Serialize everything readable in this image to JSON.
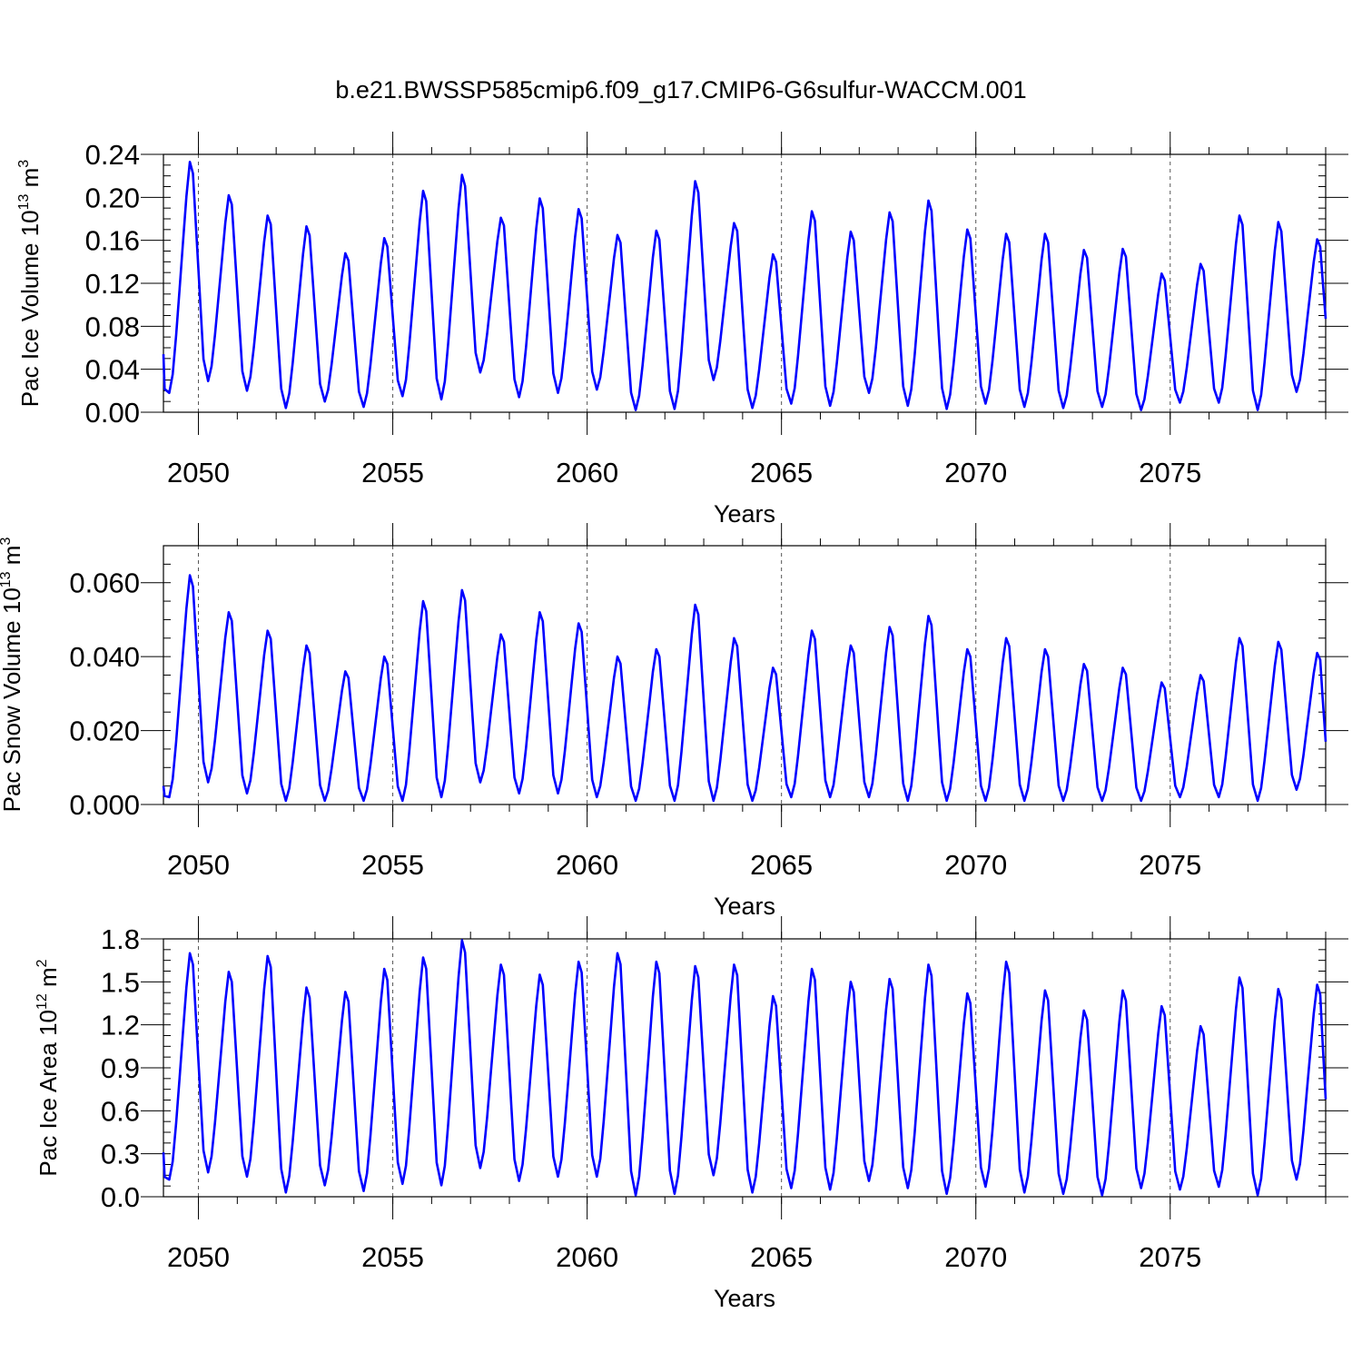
{
  "title": "b.e21.BWSSP585cmip6.f09_g17.CMIP6-G6sulfur-WACCM.001",
  "line_color": "#0000ff",
  "chart_data": [
    {
      "type": "line",
      "ylabel": "Pac Ice Volume 10",
      "ylabel_exp": "13",
      "ylabel_unit": " m",
      "ylabel_unit_exp": "3",
      "xlabel": "Years",
      "xlim": [
        2049.1,
        2079.0
      ],
      "ylim": [
        0,
        0.24
      ],
      "xticks": [
        "2050",
        "2055",
        "2060",
        "2065",
        "2070",
        "2075"
      ],
      "xtick_values": [
        2050,
        2055,
        2060,
        2065,
        2070,
        2075
      ],
      "yticks": [
        "0.00",
        "0.04",
        "0.08",
        "0.12",
        "0.16",
        "0.20",
        "0.24"
      ],
      "ytick_values": [
        0,
        0.04,
        0.08,
        0.12,
        0.16,
        0.2,
        0.24
      ],
      "maxima": [
        0.233,
        0.202,
        0.183,
        0.173,
        0.148,
        0.162,
        0.206,
        0.221,
        0.181,
        0.199,
        0.189,
        0.165,
        0.169,
        0.215,
        0.176,
        0.147,
        0.187,
        0.168,
        0.186,
        0.197,
        0.17,
        0.166,
        0.166,
        0.151,
        0.152,
        0.129,
        0.138,
        0.183,
        0.177,
        0.161
      ],
      "minima": [
        0.018,
        0.029,
        0.02,
        0.004,
        0.01,
        0.005,
        0.015,
        0.012,
        0.037,
        0.014,
        0.018,
        0.021,
        0.002,
        0.003,
        0.03,
        0.004,
        0.008,
        0.006,
        0.018,
        0.006,
        0.003,
        0.008,
        0.005,
        0.004,
        0.005,
        0.002,
        0.009,
        0.009,
        0.002,
        0.019
      ],
      "start_value": 0.054,
      "end_value": 0.087
    },
    {
      "type": "line",
      "ylabel": "Pac Snow Volume 10",
      "ylabel_exp": "13",
      "ylabel_unit": " m",
      "ylabel_unit_exp": "3",
      "xlabel": "Years",
      "xlim": [
        2049.1,
        2079.0
      ],
      "ylim": [
        0,
        0.07
      ],
      "xticks": [
        "2050",
        "2055",
        "2060",
        "2065",
        "2070",
        "2075"
      ],
      "xtick_values": [
        2050,
        2055,
        2060,
        2065,
        2070,
        2075
      ],
      "yticks": [
        "0.000",
        "0.020",
        "0.040",
        "0.060"
      ],
      "ytick_values": [
        0,
        0.02,
        0.04,
        0.06
      ],
      "maxima": [
        0.062,
        0.052,
        0.047,
        0.043,
        0.036,
        0.04,
        0.055,
        0.058,
        0.046,
        0.052,
        0.049,
        0.04,
        0.042,
        0.054,
        0.045,
        0.037,
        0.047,
        0.043,
        0.048,
        0.051,
        0.042,
        0.045,
        0.042,
        0.038,
        0.037,
        0.033,
        0.035,
        0.045,
        0.044,
        0.041
      ],
      "minima": [
        0.002,
        0.006,
        0.003,
        0.001,
        0.001,
        0.001,
        0.001,
        0.002,
        0.006,
        0.003,
        0.003,
        0.002,
        0.001,
        0.001,
        0.001,
        0.001,
        0.002,
        0.002,
        0.002,
        0.001,
        0.001,
        0.001,
        0.001,
        0.001,
        0.001,
        0.001,
        0.002,
        0.002,
        0.001,
        0.004
      ],
      "start_value": 0.005,
      "end_value": 0.017
    },
    {
      "type": "line",
      "ylabel": "Pac Ice Area 10",
      "ylabel_exp": "12",
      "ylabel_unit": " m",
      "ylabel_unit_exp": "2",
      "xlabel": "Years",
      "xlim": [
        2049.1,
        2079.0
      ],
      "ylim": [
        0,
        1.8
      ],
      "xticks": [
        "2050",
        "2055",
        "2060",
        "2065",
        "2070",
        "2075"
      ],
      "xtick_values": [
        2050,
        2055,
        2060,
        2065,
        2070,
        2075
      ],
      "yticks": [
        "0.0",
        "0.3",
        "0.6",
        "0.9",
        "1.2",
        "1.5",
        "1.8"
      ],
      "ytick_values": [
        0,
        0.3,
        0.6,
        0.9,
        1.2,
        1.5,
        1.8
      ],
      "maxima": [
        1.7,
        1.57,
        1.68,
        1.46,
        1.43,
        1.59,
        1.67,
        1.79,
        1.62,
        1.55,
        1.64,
        1.7,
        1.64,
        1.61,
        1.62,
        1.4,
        1.59,
        1.5,
        1.52,
        1.62,
        1.42,
        1.64,
        1.44,
        1.3,
        1.44,
        1.33,
        1.19,
        1.53,
        1.45,
        1.48
      ],
      "minima": [
        0.12,
        0.17,
        0.14,
        0.03,
        0.08,
        0.04,
        0.09,
        0.08,
        0.2,
        0.11,
        0.14,
        0.14,
        0.01,
        0.02,
        0.15,
        0.03,
        0.06,
        0.05,
        0.11,
        0.06,
        0.02,
        0.07,
        0.03,
        0.02,
        0.01,
        0.06,
        0.05,
        0.07,
        0.01,
        0.12
      ],
      "start_value": 0.31,
      "end_value": 0.68
    }
  ]
}
